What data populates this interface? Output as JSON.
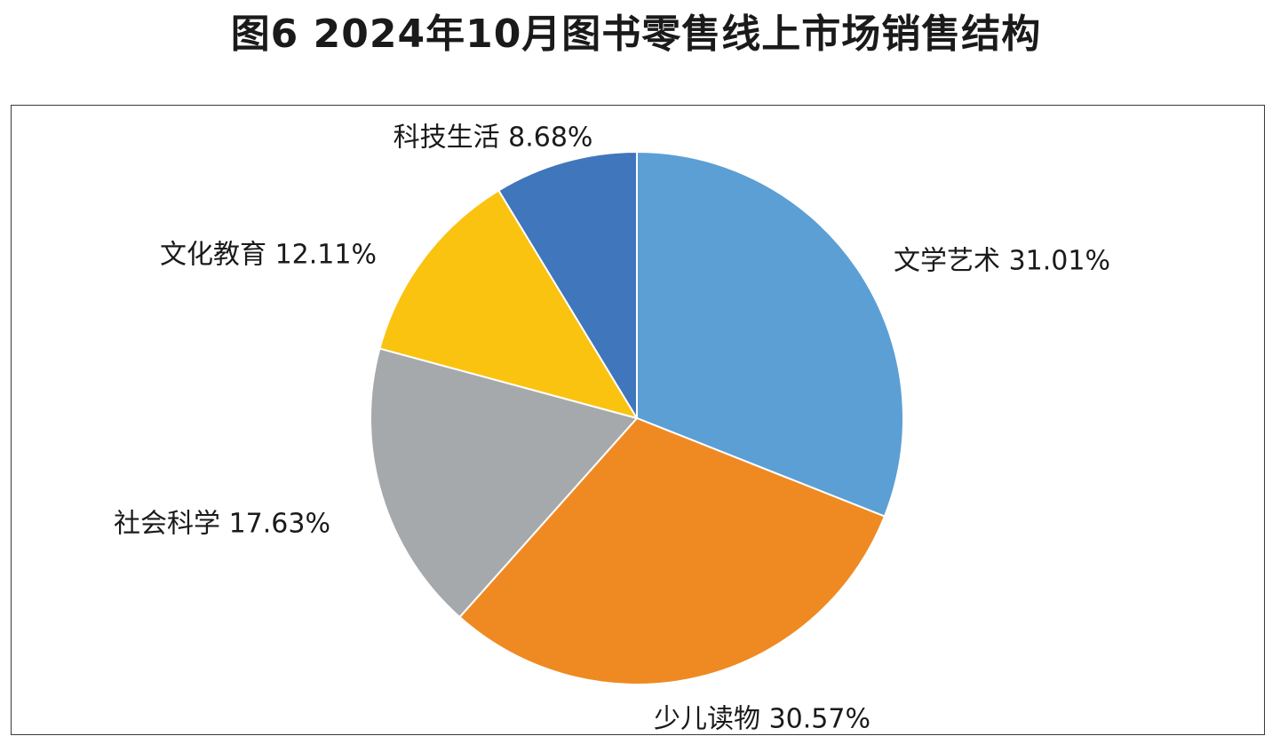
{
  "title": "图6  2024年10月图书零售线上市场销售结构",
  "chart_data": {
    "type": "pie",
    "title": "图6  2024年10月图书零售线上市场销售结构",
    "unit": "%",
    "start_angle_deg": 0,
    "direction": "clockwise",
    "slices": [
      {
        "label": "文学艺术 31.01%",
        "category": "文学艺术",
        "value": 31.01,
        "color": "#5b9fd5"
      },
      {
        "label": "少儿读物 30.57%",
        "category": "少儿读物",
        "value": 30.57,
        "color": "#ef8a23"
      },
      {
        "label": "社会科学 17.63%",
        "category": "社会科学",
        "value": 17.63,
        "color": "#a5a9ab"
      },
      {
        "label": "文化教育 12.11%",
        "category": "文化教育",
        "value": 12.11,
        "color": "#fac310"
      },
      {
        "label": "科技生活 8.68%",
        "category": "科技生活",
        "value": 8.68,
        "color": "#4076bb"
      }
    ]
  }
}
